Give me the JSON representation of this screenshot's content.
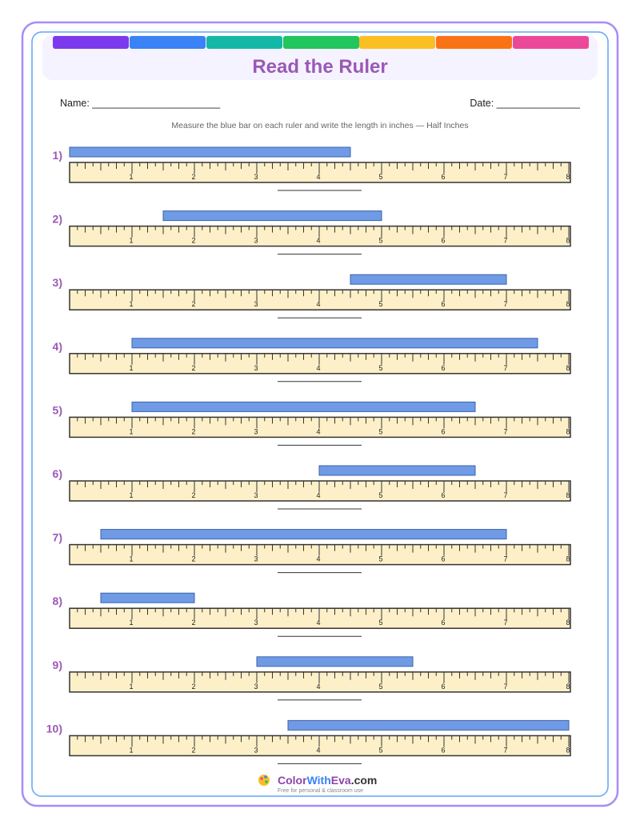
{
  "header": {
    "title": "Read the Ruler"
  },
  "fields": {
    "name": "Name: _______________________",
    "date": "Date: _______________"
  },
  "instructions": "Measure the blue bar on each ruler and write the length in inches — Half Inches",
  "ruler": {
    "labels": [
      1,
      2,
      3,
      4,
      5,
      6,
      7,
      8
    ]
  },
  "questions": [
    {
      "label": "1)",
      "bar": [
        0,
        4.5
      ]
    },
    {
      "label": "2)",
      "bar": [
        1.5,
        5
      ]
    },
    {
      "label": "3)",
      "bar": [
        4.5,
        7
      ]
    },
    {
      "label": "4)",
      "bar": [
        1,
        7.5
      ]
    },
    {
      "label": "5)",
      "bar": [
        1,
        6.5
      ]
    },
    {
      "label": "6)",
      "bar": [
        4,
        6.5
      ]
    },
    {
      "label": "7)",
      "bar": [
        0.5,
        7
      ]
    },
    {
      "label": "8)",
      "bar": [
        0.5,
        2
      ]
    },
    {
      "label": "9)",
      "bar": [
        3,
        5.5
      ]
    },
    {
      "label": "10)",
      "bar": [
        3.5,
        8
      ]
    }
  ],
  "footer": {
    "brand": [
      "Color",
      "With",
      "Eva",
      ".com"
    ],
    "tagline": "Free for personal & classroom use"
  }
}
